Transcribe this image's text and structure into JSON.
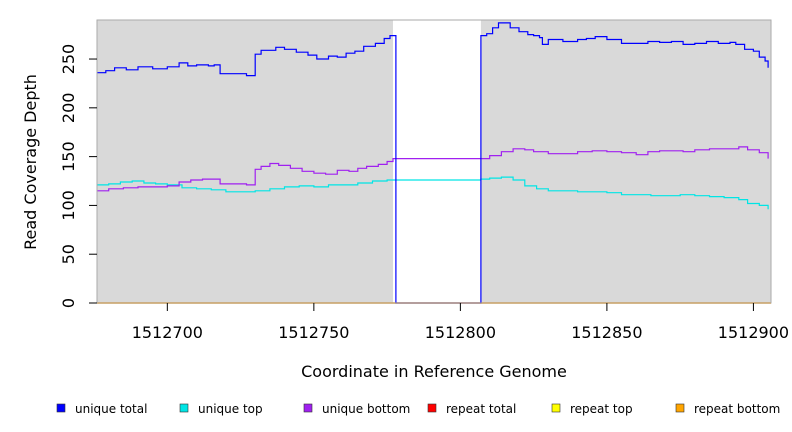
{
  "chart_data": {
    "type": "line",
    "title": "",
    "xlabel": "Coordinate in Reference Genome",
    "ylabel": "Read Coverage Depth",
    "xlim": [
      1512676,
      1512906
    ],
    "ylim": [
      0,
      290
    ],
    "xticks": [
      1512700,
      1512750,
      1512800,
      1512850,
      1512900
    ],
    "yticks": [
      0,
      50,
      100,
      150,
      200,
      250
    ],
    "grid": false,
    "legend_position": "bottom",
    "background": "#d9d9d9",
    "gap_region": [
      1512777,
      1512807
    ],
    "series": [
      {
        "name": "unique total",
        "color": "#0000ff",
        "points": [
          [
            1512676,
            236
          ],
          [
            1512679,
            238
          ],
          [
            1512682,
            241
          ],
          [
            1512686,
            239
          ],
          [
            1512690,
            242
          ],
          [
            1512695,
            240
          ],
          [
            1512700,
            242
          ],
          [
            1512704,
            246
          ],
          [
            1512707,
            243
          ],
          [
            1512710,
            244
          ],
          [
            1512714,
            243
          ],
          [
            1512716,
            244
          ],
          [
            1512718,
            235
          ],
          [
            1512722,
            235
          ],
          [
            1512727,
            233
          ],
          [
            1512730,
            255
          ],
          [
            1512732,
            259
          ],
          [
            1512737,
            262
          ],
          [
            1512740,
            260
          ],
          [
            1512744,
            257
          ],
          [
            1512748,
            254
          ],
          [
            1512751,
            250
          ],
          [
            1512755,
            253
          ],
          [
            1512758,
            252
          ],
          [
            1512761,
            256
          ],
          [
            1512764,
            258
          ],
          [
            1512767,
            263
          ],
          [
            1512771,
            266
          ],
          [
            1512774,
            271
          ],
          [
            1512776,
            274
          ],
          [
            1512777,
            274
          ],
          [
            1512778,
            0
          ],
          [
            1512806,
            0
          ],
          [
            1512807,
            274
          ],
          [
            1512809,
            276
          ],
          [
            1512811,
            282
          ],
          [
            1512813,
            287
          ],
          [
            1512817,
            282
          ],
          [
            1512820,
            278
          ],
          [
            1512823,
            275
          ],
          [
            1512825,
            274
          ],
          [
            1512827,
            272
          ],
          [
            1512828,
            265
          ],
          [
            1512830,
            270
          ],
          [
            1512835,
            268
          ],
          [
            1512840,
            270
          ],
          [
            1512843,
            271
          ],
          [
            1512846,
            273
          ],
          [
            1512850,
            270
          ],
          [
            1512855,
            266
          ],
          [
            1512860,
            266
          ],
          [
            1512864,
            268
          ],
          [
            1512868,
            267
          ],
          [
            1512872,
            268
          ],
          [
            1512876,
            265
          ],
          [
            1512880,
            266
          ],
          [
            1512884,
            268
          ],
          [
            1512888,
            266
          ],
          [
            1512892,
            267
          ],
          [
            1512894,
            265
          ],
          [
            1512897,
            260
          ],
          [
            1512900,
            258
          ],
          [
            1512902,
            252
          ],
          [
            1512904,
            248
          ],
          [
            1512905,
            241
          ]
        ]
      },
      {
        "name": "unique top",
        "color": "#00e5e5",
        "points": [
          [
            1512676,
            121
          ],
          [
            1512680,
            122
          ],
          [
            1512684,
            124
          ],
          [
            1512688,
            125
          ],
          [
            1512692,
            123
          ],
          [
            1512696,
            122
          ],
          [
            1512700,
            121
          ],
          [
            1512705,
            118
          ],
          [
            1512710,
            117
          ],
          [
            1512715,
            116
          ],
          [
            1512720,
            114
          ],
          [
            1512725,
            114
          ],
          [
            1512730,
            115
          ],
          [
            1512735,
            117
          ],
          [
            1512740,
            119
          ],
          [
            1512745,
            120
          ],
          [
            1512750,
            119
          ],
          [
            1512755,
            121
          ],
          [
            1512760,
            121
          ],
          [
            1512765,
            123
          ],
          [
            1512770,
            125
          ],
          [
            1512775,
            126
          ],
          [
            1512777,
            126
          ],
          [
            1512807,
            127
          ],
          [
            1512810,
            128
          ],
          [
            1512814,
            129
          ],
          [
            1512818,
            126
          ],
          [
            1512822,
            120
          ],
          [
            1512826,
            117
          ],
          [
            1512830,
            115
          ],
          [
            1512835,
            115
          ],
          [
            1512840,
            114
          ],
          [
            1512845,
            114
          ],
          [
            1512850,
            113
          ],
          [
            1512855,
            111
          ],
          [
            1512860,
            111
          ],
          [
            1512865,
            110
          ],
          [
            1512870,
            110
          ],
          [
            1512875,
            111
          ],
          [
            1512880,
            110
          ],
          [
            1512885,
            109
          ],
          [
            1512890,
            108
          ],
          [
            1512895,
            106
          ],
          [
            1512898,
            102
          ],
          [
            1512902,
            100
          ],
          [
            1512905,
            96
          ]
        ]
      },
      {
        "name": "unique bottom",
        "color": "#a020f0",
        "points": [
          [
            1512676,
            115
          ],
          [
            1512680,
            117
          ],
          [
            1512685,
            118
          ],
          [
            1512690,
            119
          ],
          [
            1512695,
            119
          ],
          [
            1512700,
            120
          ],
          [
            1512704,
            124
          ],
          [
            1512708,
            126
          ],
          [
            1512712,
            127
          ],
          [
            1512715,
            127
          ],
          [
            1512718,
            122
          ],
          [
            1512722,
            122
          ],
          [
            1512727,
            121
          ],
          [
            1512730,
            137
          ],
          [
            1512732,
            140
          ],
          [
            1512735,
            143
          ],
          [
            1512738,
            141
          ],
          [
            1512742,
            138
          ],
          [
            1512746,
            135
          ],
          [
            1512750,
            133
          ],
          [
            1512754,
            132
          ],
          [
            1512758,
            136
          ],
          [
            1512762,
            135
          ],
          [
            1512765,
            138
          ],
          [
            1512768,
            140
          ],
          [
            1512772,
            142
          ],
          [
            1512775,
            145
          ],
          [
            1512777,
            148
          ],
          [
            1512807,
            148
          ],
          [
            1512810,
            151
          ],
          [
            1512814,
            155
          ],
          [
            1512818,
            158
          ],
          [
            1512822,
            157
          ],
          [
            1512825,
            155
          ],
          [
            1512830,
            153
          ],
          [
            1512835,
            153
          ],
          [
            1512840,
            155
          ],
          [
            1512845,
            156
          ],
          [
            1512850,
            155
          ],
          [
            1512855,
            154
          ],
          [
            1512860,
            152
          ],
          [
            1512864,
            155
          ],
          [
            1512868,
            156
          ],
          [
            1512872,
            156
          ],
          [
            1512876,
            155
          ],
          [
            1512880,
            157
          ],
          [
            1512885,
            158
          ],
          [
            1512890,
            158
          ],
          [
            1512895,
            160
          ],
          [
            1512898,
            157
          ],
          [
            1512902,
            154
          ],
          [
            1512905,
            148
          ]
        ]
      },
      {
        "name": "repeat total",
        "color": "#ff0000",
        "points": [
          [
            1512676,
            0
          ],
          [
            1512906,
            0
          ]
        ]
      },
      {
        "name": "repeat top",
        "color": "#ffff00",
        "points": [
          [
            1512676,
            0
          ],
          [
            1512906,
            0
          ]
        ]
      },
      {
        "name": "repeat bottom",
        "color": "#ffa500",
        "points": [
          [
            1512676,
            0
          ],
          [
            1512906,
            0
          ]
        ]
      }
    ]
  }
}
